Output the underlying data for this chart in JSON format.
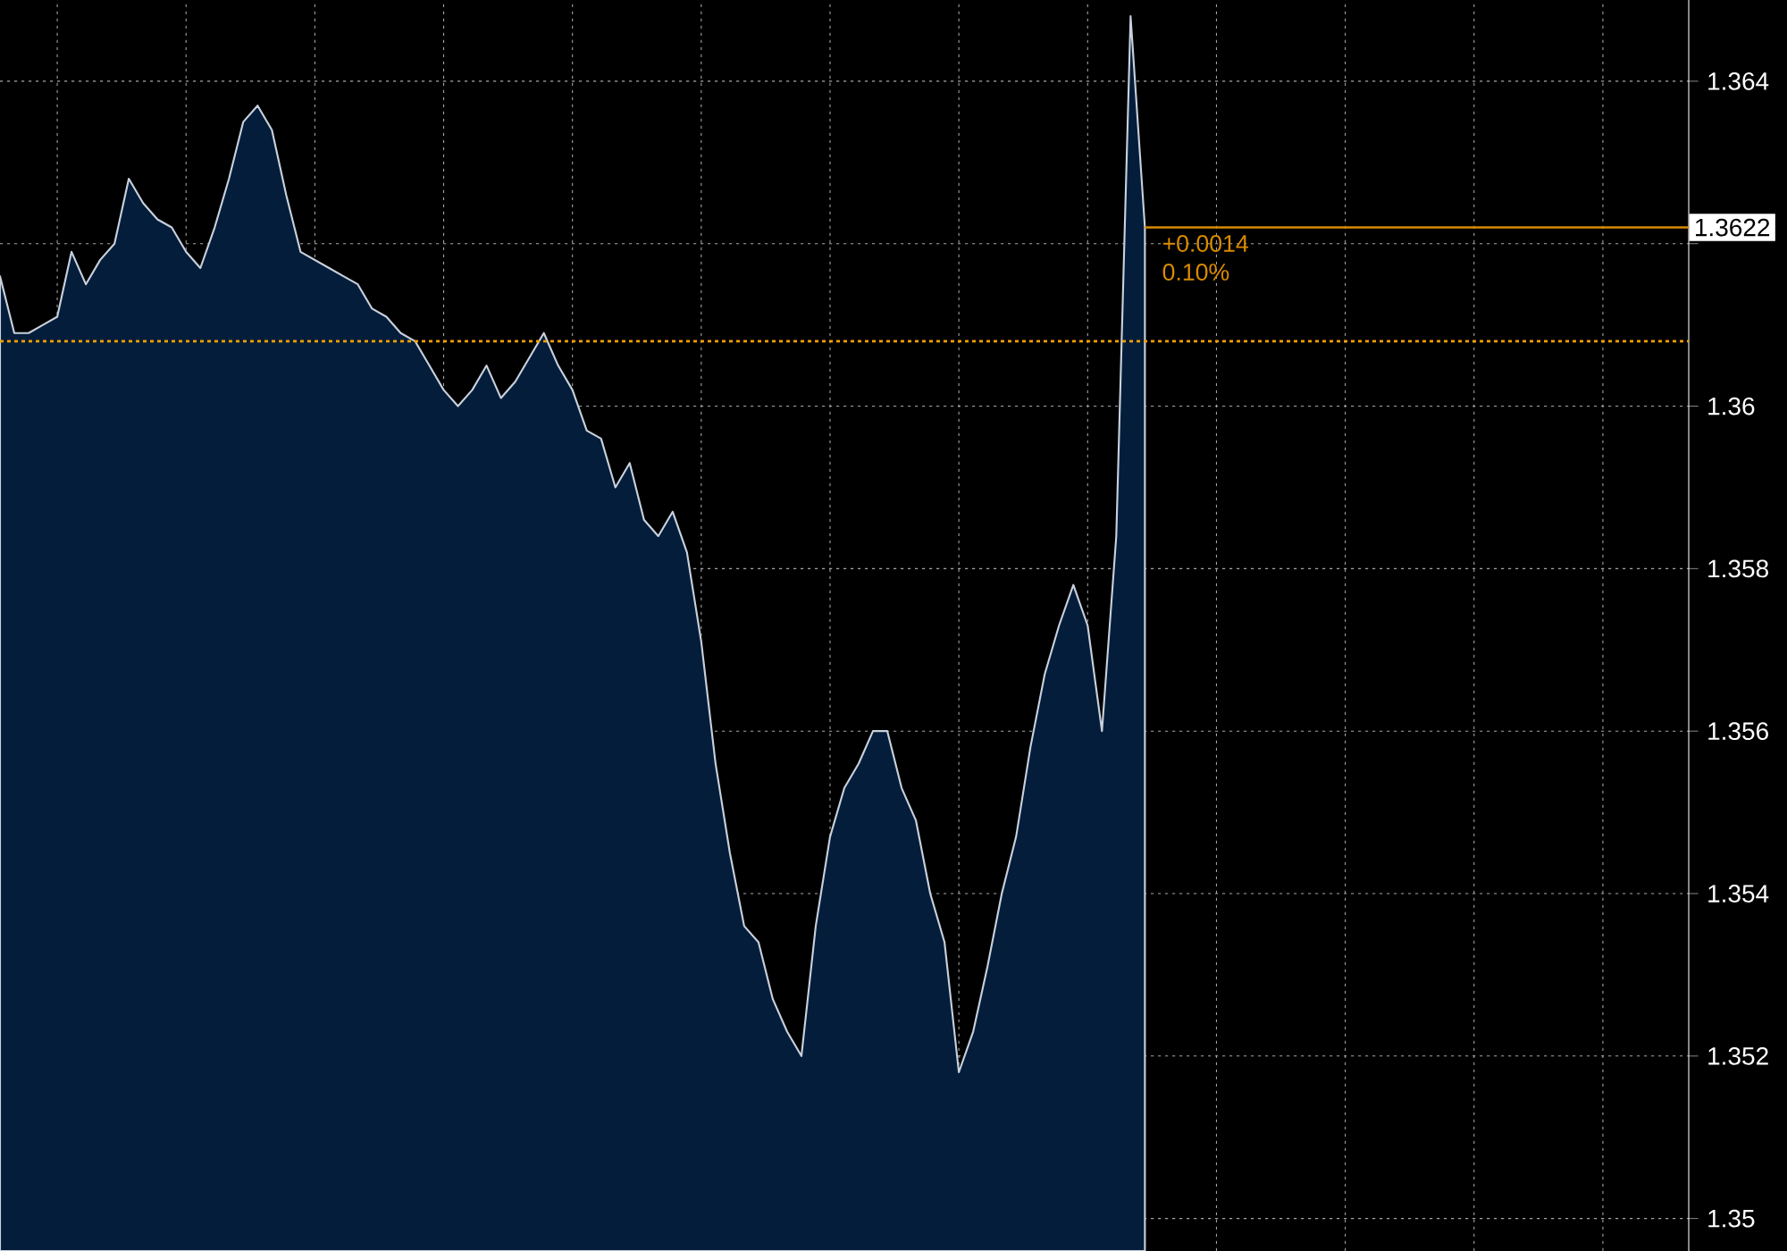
{
  "chart_data": {
    "type": "area",
    "categories": [
      null,
      null,
      null,
      null,
      null,
      null,
      null,
      null,
      null,
      null,
      null,
      null,
      null,
      null,
      null,
      null,
      null,
      null,
      null,
      null,
      null,
      null,
      null,
      null,
      null,
      null,
      null,
      null,
      null,
      null,
      null,
      null,
      null,
      null,
      null,
      null,
      null,
      null,
      null,
      null,
      null,
      null,
      null,
      null,
      null,
      null,
      null,
      null,
      null,
      null,
      null,
      null,
      null,
      null,
      null,
      null,
      null,
      null,
      null,
      null,
      null,
      null,
      null,
      null,
      null,
      null,
      null,
      null,
      null,
      null,
      null,
      null,
      null,
      null,
      null,
      null,
      null,
      null,
      null,
      null,
      null,
      null,
      null,
      null,
      null,
      null,
      null,
      null,
      null,
      null,
      null,
      null,
      null,
      null,
      null,
      null,
      null,
      null,
      null,
      null,
      null,
      null,
      null,
      null,
      null,
      null,
      null,
      null,
      null,
      null,
      null,
      null,
      null,
      null,
      null,
      null,
      null,
      null,
      null
    ],
    "series": [
      {
        "color": "#031d3a",
        "values": [
          1.3616,
          1.3609,
          1.3609,
          1.361,
          1.3611,
          1.3619,
          1.3615,
          1.3618,
          1.362,
          1.3628,
          1.3625,
          1.3623,
          1.3622,
          1.3619,
          1.3617,
          1.3622,
          1.3628,
          1.3635,
          1.3637,
          1.3634,
          1.3626,
          1.3619,
          1.3618,
          1.3617,
          1.3616,
          1.3615,
          1.3612,
          1.3611,
          1.3609,
          1.3608,
          1.3605,
          1.3602,
          1.36,
          1.3602,
          1.3605,
          1.3601,
          1.3603,
          1.3606,
          1.3609,
          1.3605,
          1.3602,
          1.3597,
          1.3596,
          1.359,
          1.3593,
          1.3586,
          1.3584,
          1.3587,
          1.3582,
          1.3571,
          1.3556,
          1.3545,
          1.3536,
          1.3534,
          1.3527,
          1.3523,
          1.352,
          1.3536,
          1.3547,
          1.3553,
          1.3556,
          1.356,
          1.356,
          1.3553,
          1.3549,
          1.354,
          1.3534,
          1.3518,
          1.3523,
          1.3531,
          1.354,
          1.3547,
          1.3558,
          1.3567,
          1.3573,
          1.3578,
          1.3573,
          1.356,
          1.3584,
          1.3648,
          1.3622,
          null,
          null,
          null,
          null,
          null,
          null,
          null,
          null,
          null,
          null,
          null,
          null,
          null,
          null,
          null,
          null,
          null,
          null,
          null,
          null,
          null,
          null,
          null,
          null,
          null,
          null,
          null,
          null,
          null,
          null,
          null,
          null,
          null,
          null,
          null,
          null,
          null,
          null
        ]
      }
    ],
    "ylim": [
      1.3496,
      1.365
    ],
    "yticks": [
      1.35,
      1.352,
      1.354,
      1.356,
      1.358,
      1.36,
      {
        "value": 1.362,
        "label": null
      },
      1.364
    ],
    "grid": true,
    "marker": "none",
    "line_style": "solid",
    "ref_lines": [
      {
        "axis": "y",
        "value": 1.3608,
        "color": "#f5a000",
        "line_style": "dotted"
      },
      {
        "axis": "y",
        "value": 1.3622,
        "color": "#d98a00",
        "line_style": "solid",
        "label": "1.3622"
      }
    ],
    "annotations": [
      "+0.0014",
      "0.10%"
    ]
  }
}
